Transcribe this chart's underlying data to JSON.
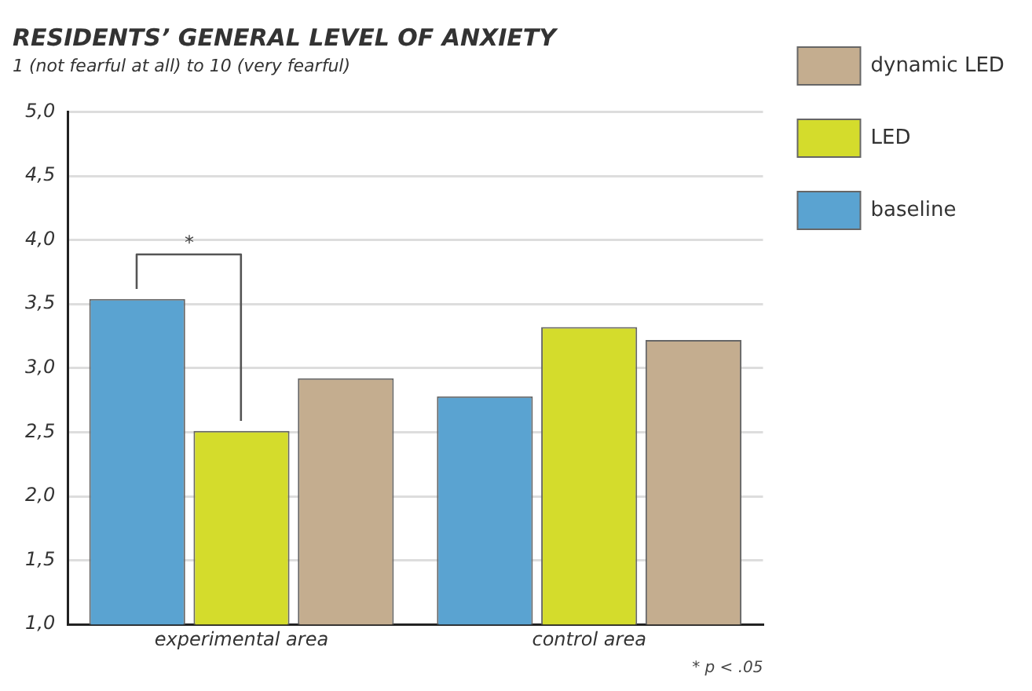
{
  "chart_data": {
    "type": "bar",
    "title": "RESIDENTS’ GENERAL LEVEL OF ANXIETY",
    "subtitle": "1 (not fearful at all) to 10 (very fearful)",
    "categories": [
      "experimental area",
      "control area"
    ],
    "series": [
      {
        "name": "baseline",
        "color": "#5aa3d1",
        "values": [
          3.54,
          2.78
        ]
      },
      {
        "name": "LED",
        "color": "#d4dc2c",
        "values": [
          2.51,
          3.32
        ]
      },
      {
        "name": "dynamic LED",
        "color": "#c4ad8f",
        "values": [
          2.92,
          3.22
        ]
      }
    ],
    "ylim": [
      1,
      5
    ],
    "yticks": [
      {
        "value": 1,
        "label": "1,0"
      },
      {
        "value": 1.5,
        "label": "1,5"
      },
      {
        "value": 2,
        "label": "2,0"
      },
      {
        "value": 2.5,
        "label": "2,5"
      },
      {
        "value": 3,
        "label": "3,0"
      },
      {
        "value": 3.5,
        "label": "3,5"
      },
      {
        "value": 4,
        "label": "4,0"
      },
      {
        "value": 4.5,
        "label": "4,5"
      },
      {
        "value": 5,
        "label": "5,0"
      }
    ],
    "grid": "y",
    "legend": "top right",
    "annotations": [
      "*",
      "* p < .05"
    ]
  }
}
